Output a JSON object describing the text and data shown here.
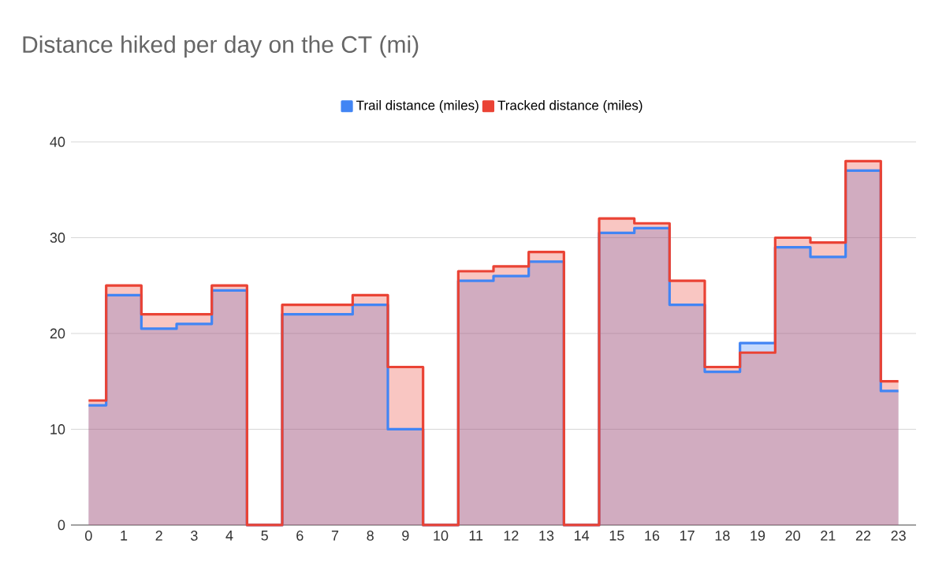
{
  "chart_data": {
    "type": "step",
    "title": "Distance hiked per day on the CT (mi)",
    "categories": [
      "0",
      "1",
      "2",
      "3",
      "4",
      "5",
      "6",
      "7",
      "8",
      "9",
      "10",
      "11",
      "12",
      "13",
      "14",
      "15",
      "16",
      "17",
      "18",
      "19",
      "20",
      "21",
      "22",
      "23"
    ],
    "series": [
      {
        "name": "Trail distance (miles)",
        "color": "#4285f4",
        "values": [
          12.5,
          24,
          20.5,
          21,
          24.5,
          0,
          22,
          22,
          23,
          10,
          0,
          25.5,
          26,
          27.5,
          0,
          30.5,
          31,
          23,
          16,
          19,
          29,
          28,
          37,
          14
        ]
      },
      {
        "name": "Tracked distance (miles)",
        "color": "#ea4335",
        "values": [
          13,
          25,
          22,
          22,
          25,
          0,
          23,
          23,
          24,
          16.5,
          0,
          26.5,
          27,
          28.5,
          0,
          32,
          31.5,
          25.5,
          16.5,
          18,
          30,
          29.5,
          38,
          15
        ]
      }
    ],
    "ylim": [
      0,
      40
    ],
    "yticks": [
      0,
      10,
      20,
      30,
      40
    ],
    "grid": "y",
    "legend": "top"
  }
}
